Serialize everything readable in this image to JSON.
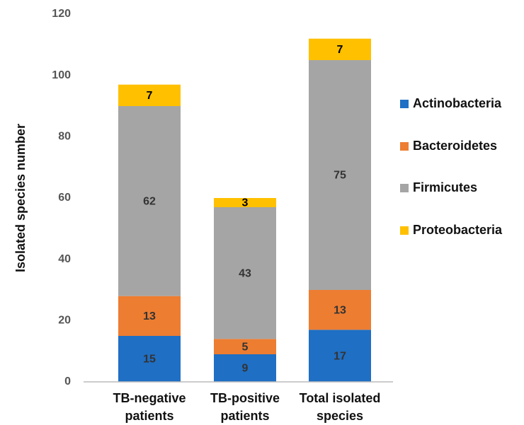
{
  "chart_data": {
    "type": "stacked_bar",
    "y_axis_label": "Isolated species number",
    "categories": [
      "TB-negative patients",
      "TB-positive patients",
      "Total isolated species"
    ],
    "series": [
      {
        "name": "Actinobacteria",
        "color": "#1f6fc4",
        "values": [
          15,
          9,
          17
        ]
      },
      {
        "name": "Bacteroidetes",
        "color": "#ed7d31",
        "values": [
          13,
          5,
          13
        ]
      },
      {
        "name": "Firmicutes",
        "color": "#a5a5a5",
        "values": [
          62,
          43,
          75
        ]
      },
      {
        "name": "Proteobacteria",
        "color": "#ffc000",
        "values": [
          7,
          3,
          7
        ]
      }
    ],
    "ylim": [
      0,
      120
    ],
    "yticks": [
      0,
      20,
      40,
      60,
      80,
      100,
      120
    ],
    "grid": false,
    "legend": "right"
  }
}
